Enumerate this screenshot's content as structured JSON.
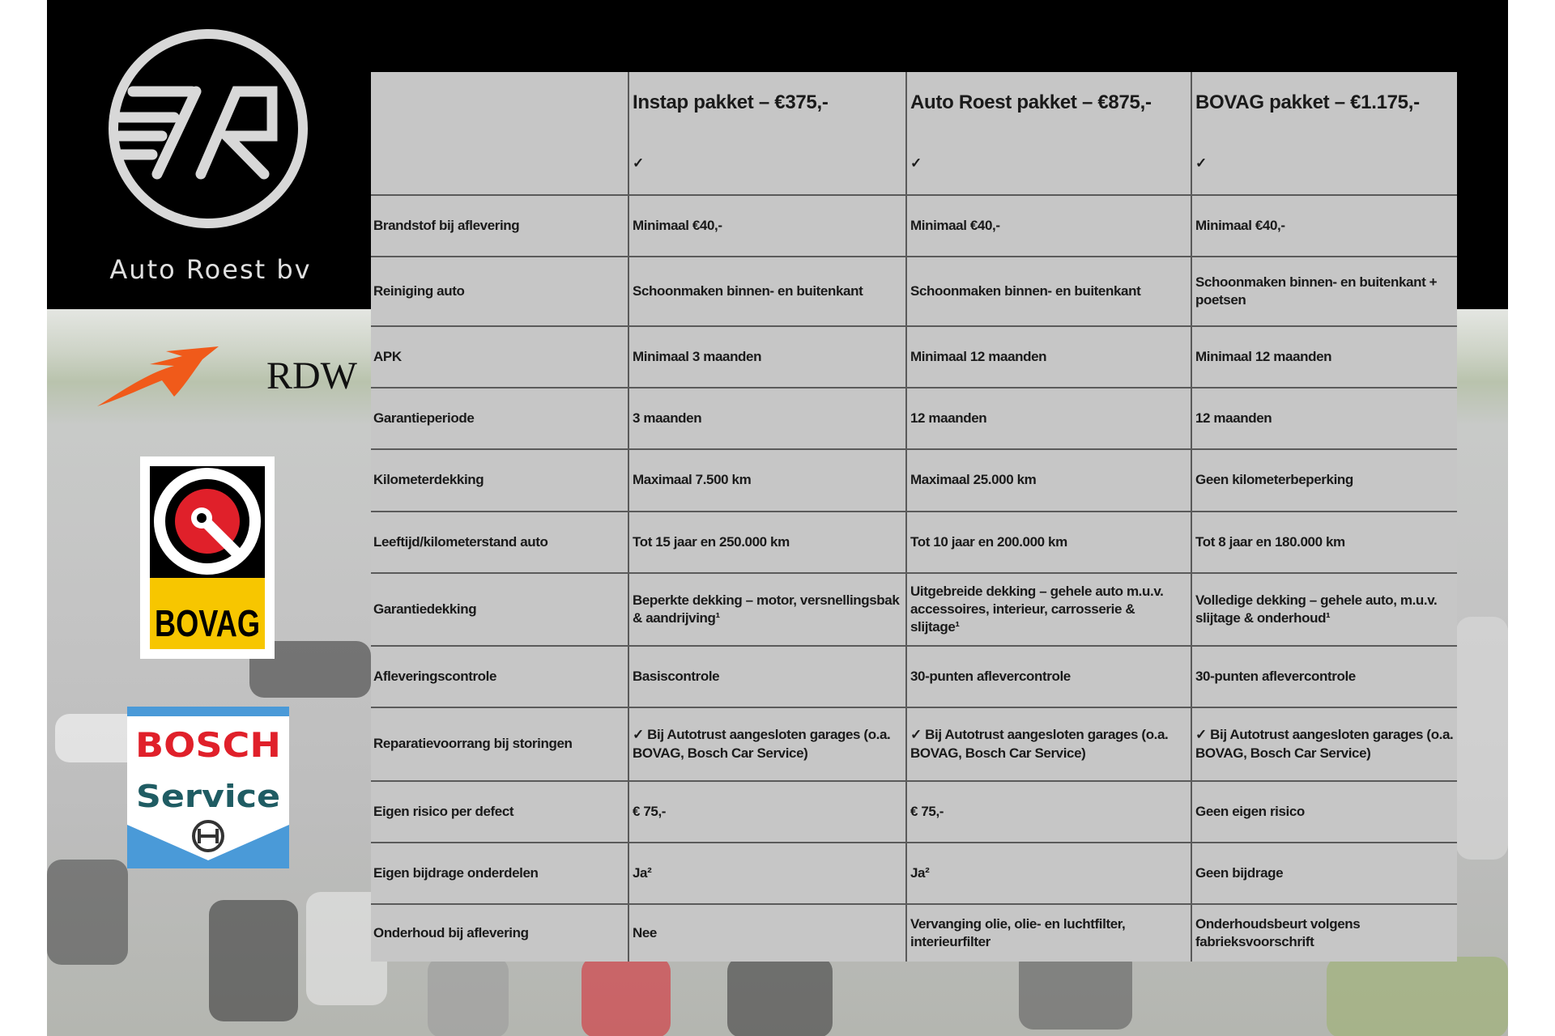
{
  "brand": {
    "name": "Auto Roest bv",
    "logo_text": "R"
  },
  "partner_logos": [
    {
      "name": "RDW",
      "color": "#f05a1a"
    },
    {
      "name": "BOVAG",
      "color": "#f7c600",
      "accent": "#e0202a"
    },
    {
      "name": "BOSCH Service",
      "color": "#e0202a",
      "accent": "#4a9ad8",
      "text2_color": "#1f5c63"
    }
  ],
  "table": {
    "headers": [
      "",
      "Instap pakket – €375,-",
      "Auto Roest pakket – €875,-",
      "BOVAG pakket – €1.175,-"
    ],
    "rows": [
      [
        "",
        "✓",
        "✓",
        "✓"
      ],
      [
        "Brandstof bij aflevering",
        "Minimaal €40,-",
        "Minimaal €40,-",
        "Minimaal €40,-"
      ],
      [
        "Reiniging auto",
        "Schoonmaken binnen- en buitenkant",
        "Schoonmaken binnen- en buitenkant",
        "Schoonmaken binnen- en buitenkant + poetsen"
      ],
      [
        "APK",
        "Minimaal 3 maanden",
        "Minimaal 12 maanden",
        "Minimaal 12 maanden"
      ],
      [
        "Garantieperiode",
        "3 maanden",
        "12 maanden",
        "12 maanden"
      ],
      [
        "Kilometerdekking",
        "Maximaal 7.500 km",
        "Maximaal 25.000 km",
        "Geen kilometerbeperking"
      ],
      [
        "Leeftijd/kilometerstand auto",
        "Tot 15 jaar en 250.000 km",
        "Tot 10 jaar en 200.000 km",
        "Tot 8 jaar en 180.000 km"
      ],
      [
        "Garantiedekking",
        "Beperkte dekking – motor, versnellingsbak & aandrijving¹",
        "Uitgebreide dekking – gehele auto m.u.v. accessoires, interieur, carrosserie & slijtage¹",
        "Volledige dekking – gehele auto, m.u.v. slijtage & onderhoud¹"
      ],
      [
        "Afleveringscontrole",
        "Basiscontrole",
        "30-punten aflevercontrole",
        "30-punten aflevercontrole"
      ],
      [
        "Reparatievoorrang bij storingen",
        "✓ Bij Autotrust aangesloten garages (o.a. BOVAG, Bosch Car Service)",
        "✓ Bij Autotrust aangesloten garages (o.a. BOVAG, Bosch Car Service)",
        "✓ Bij Autotrust aangesloten garages (o.a. BOVAG, Bosch Car Service)"
      ],
      [
        "Eigen risico per defect",
        "€ 75,-",
        "€ 75,-",
        "Geen eigen risico"
      ],
      [
        "Eigen bijdrage onderdelen",
        "Ja²",
        "Ja²",
        "Geen bijdrage"
      ],
      [
        "Onderhoud bij aflevering",
        "Nee",
        "Vervanging olie, olie- en luchtfilter, interieurfilter",
        "Onderhoudsbeurt volgens fabrieksvoorschrift"
      ]
    ]
  }
}
